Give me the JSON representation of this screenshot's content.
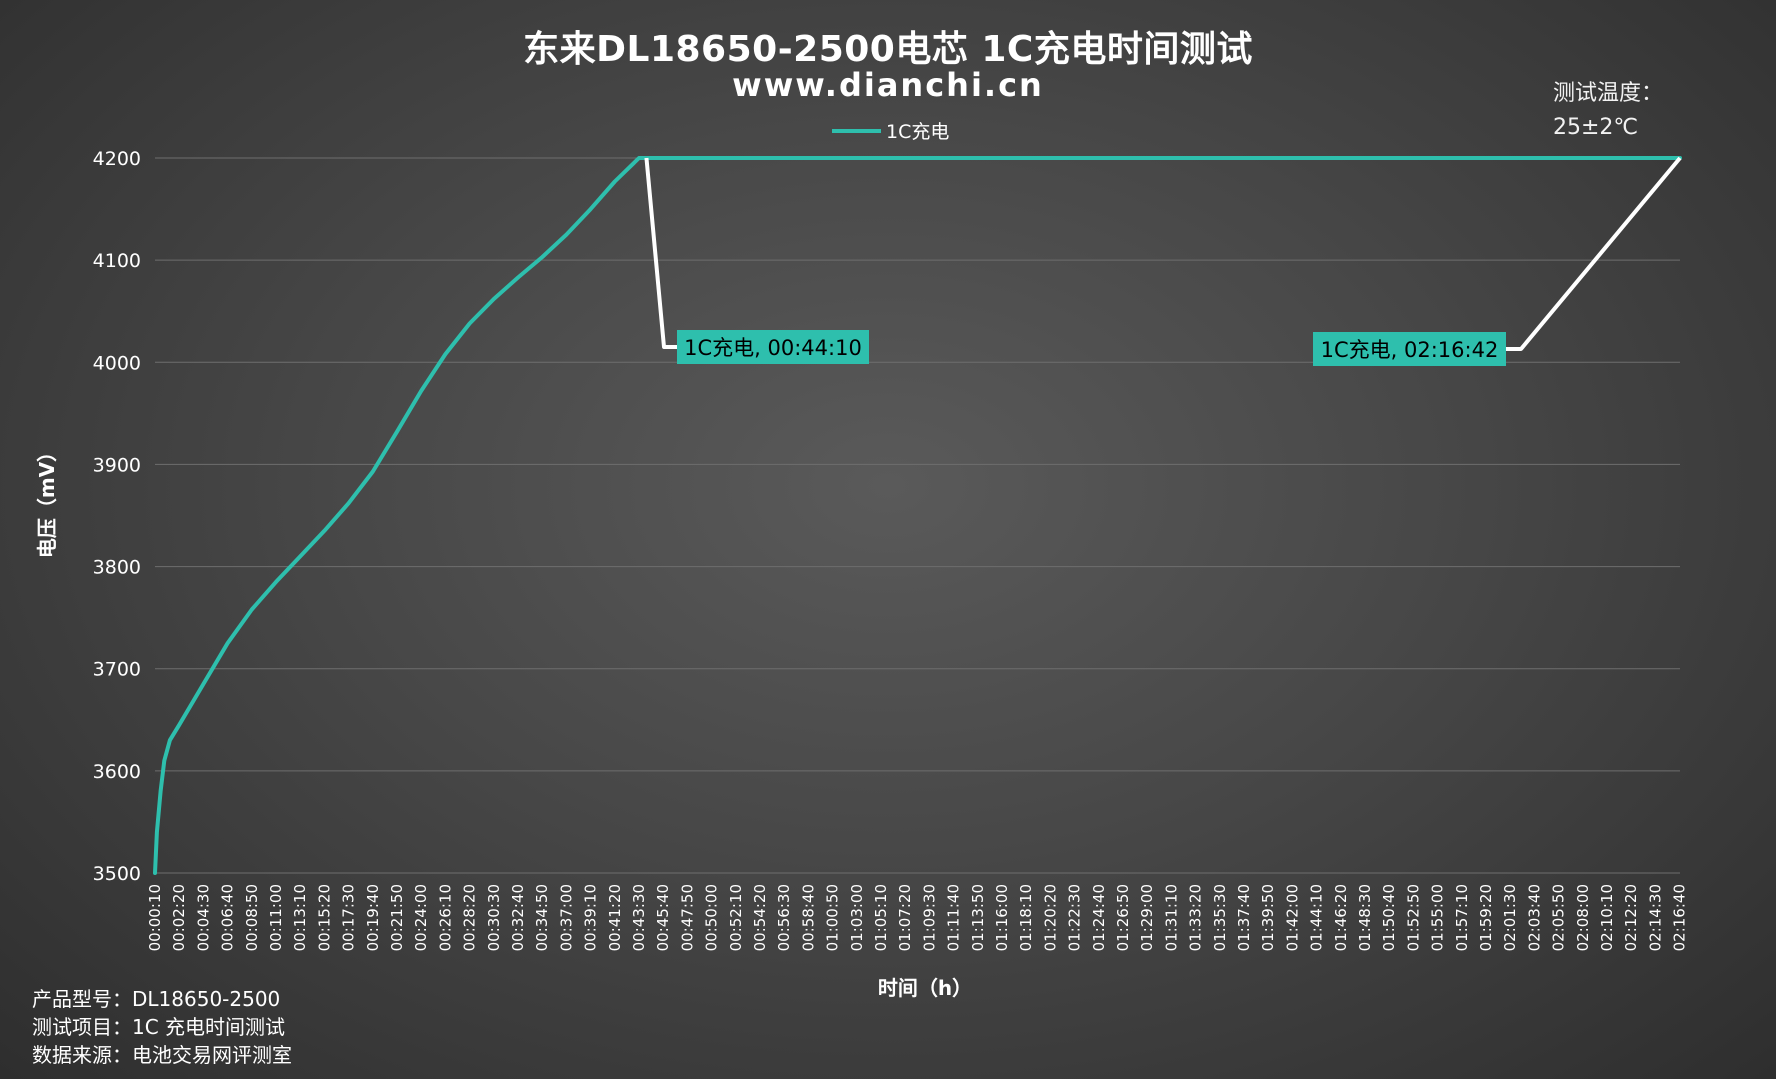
{
  "chart_data": {
    "type": "line",
    "title": "东来DL18650-2500电芯 1C充电时间测试",
    "subtitle": "www.dianchi.cn",
    "xlabel": "时间（h）",
    "ylabel": "电压（mV）",
    "ylim": [
      3500,
      4200
    ],
    "yticks": [
      3500,
      3600,
      3700,
      3800,
      3900,
      4000,
      4100,
      4200
    ],
    "x_unit": "hh:mm:ss",
    "xlim": [
      "00:00:10",
      "02:16:42"
    ],
    "xticks": [
      "00:00:10",
      "00:02:20",
      "00:04:30",
      "00:06:40",
      "00:08:50",
      "00:11:00",
      "00:13:10",
      "00:15:20",
      "00:17:30",
      "00:19:40",
      "00:21:50",
      "00:24:00",
      "00:26:10",
      "00:28:20",
      "00:30:30",
      "00:32:40",
      "00:34:50",
      "00:37:00",
      "00:39:10",
      "00:41:20",
      "00:43:30",
      "00:45:40",
      "00:47:50",
      "00:50:00",
      "00:52:10",
      "00:54:20",
      "00:56:30",
      "00:58:40",
      "01:00:50",
      "01:03:00",
      "01:05:10",
      "01:07:20",
      "01:09:30",
      "01:11:40",
      "01:13:50",
      "01:16:00",
      "01:18:10",
      "01:20:20",
      "01:22:30",
      "01:24:40",
      "01:26:50",
      "01:29:00",
      "01:31:10",
      "01:33:20",
      "01:35:30",
      "01:37:40",
      "01:39:50",
      "01:42:00",
      "01:44:10",
      "01:46:20",
      "01:48:30",
      "01:50:40",
      "01:52:50",
      "01:55:00",
      "01:57:10",
      "01:59:20",
      "02:01:30",
      "02:03:40",
      "02:05:50",
      "02:08:00",
      "02:10:10",
      "02:12:20",
      "02:14:30",
      "02:16:40"
    ],
    "grid": true,
    "legend_position": "top-center",
    "series": [
      {
        "name": "1C充电",
        "color": "#2ebfad",
        "points": [
          [
            "00:00:10",
            3500
          ],
          [
            "00:00:20",
            3540
          ],
          [
            "00:00:40",
            3580
          ],
          [
            "00:01:00",
            3610
          ],
          [
            "00:01:30",
            3630
          ],
          [
            "00:02:20",
            3645
          ],
          [
            "00:04:30",
            3685
          ],
          [
            "00:06:40",
            3725
          ],
          [
            "00:08:50",
            3758
          ],
          [
            "00:11:00",
            3785
          ],
          [
            "00:13:10",
            3810
          ],
          [
            "00:15:20",
            3835
          ],
          [
            "00:17:30",
            3862
          ],
          [
            "00:19:40",
            3893
          ],
          [
            "00:21:50",
            3932
          ],
          [
            "00:24:00",
            3972
          ],
          [
            "00:26:10",
            4008
          ],
          [
            "00:28:20",
            4038
          ],
          [
            "00:30:30",
            4062
          ],
          [
            "00:32:40",
            4083
          ],
          [
            "00:34:50",
            4103
          ],
          [
            "00:37:00",
            4125
          ],
          [
            "00:39:10",
            4150
          ],
          [
            "00:41:20",
            4177
          ],
          [
            "00:43:30",
            4200
          ],
          [
            "00:44:10",
            4200
          ],
          [
            "01:00:00",
            4200
          ],
          [
            "01:30:00",
            4200
          ],
          [
            "02:00:00",
            4200
          ],
          [
            "02:16:42",
            4200
          ]
        ]
      }
    ],
    "annotations": [
      {
        "text": "1C充电, 00:44:10",
        "x": "00:44:10",
        "y": 4200,
        "color": "#2ebfad"
      },
      {
        "text": "1C充电, 02:16:42",
        "x": "02:16:42",
        "y": 4200,
        "color": "#2ebfad"
      }
    ]
  },
  "test_temperature": {
    "label": "测试温度：",
    "value": "25±2℃"
  },
  "footer": {
    "model": "产品型号：DL18650-2500",
    "item": "测试项目：1C 充电时间测试",
    "source": "数据来源：电池交易网评测室"
  }
}
